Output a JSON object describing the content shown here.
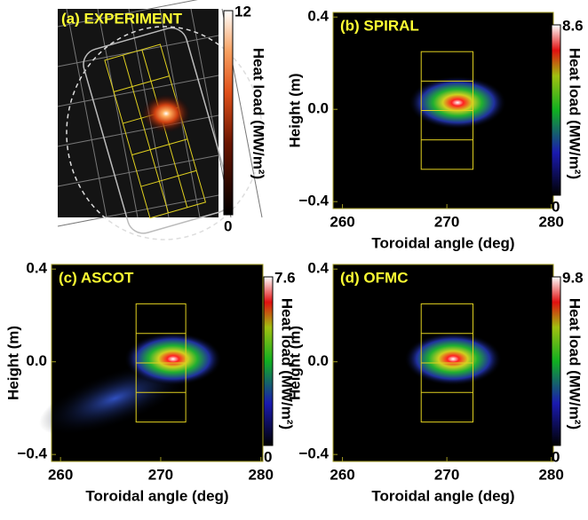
{
  "chart_data": [
    {
      "type": "image",
      "title": "(a) EXPERIMENT",
      "clabel": "Heat load (MW/m²)",
      "clim": [
        0,
        12
      ],
      "cticks": [
        0,
        12
      ]
    },
    {
      "type": "heatmap",
      "title": "(b) SPIRAL",
      "xlabel": "Toroidal angle (deg)",
      "ylabel": "Height (m)",
      "xlim": [
        259.1,
        280.2
      ],
      "xticks": [
        260,
        270,
        280
      ],
      "ylim": [
        -0.43,
        0.42
      ],
      "yticks": [
        {
          "value": -0.4,
          "label": "−0.4"
        },
        {
          "value": 0,
          "label": "0.0"
        },
        0.4
      ],
      "clabel": "Heat load (MW/m²)",
      "clim": [
        0,
        8.6
      ],
      "cticks": [
        0,
        8.6
      ]
    },
    {
      "type": "heatmap",
      "title": "(c) ASCOT",
      "xlabel": "Toroidal angle (deg)",
      "ylabel": "Height (m)",
      "xlim": [
        259.1,
        280.2
      ],
      "xticks": [
        260,
        270,
        280
      ],
      "ylim": [
        -0.43,
        0.42
      ],
      "yticks": [
        {
          "value": -0.4,
          "label": "−0.4"
        },
        {
          "value": 0,
          "label": "0.0"
        },
        0.4
      ],
      "clabel": "Heat load (MW/m²)",
      "clim": [
        0,
        7.6
      ],
      "cticks": [
        0,
        7.6
      ]
    },
    {
      "type": "heatmap",
      "title": "(d) OFMC",
      "xlabel": "Toroidal angle (deg)",
      "ylabel": "Height (m)",
      "xlim": [
        259.1,
        280.2
      ],
      "xticks": [
        260,
        270,
        280
      ],
      "ylim": [
        -0.43,
        0.42
      ],
      "yticks": [
        {
          "value": -0.4,
          "label": "−0.4"
        },
        {
          "value": 0,
          "label": "0.0"
        },
        0.4
      ],
      "clabel": "Heat load (MW/m²)",
      "clim": [
        0,
        9.8
      ],
      "cticks": [
        0,
        9.8
      ]
    }
  ]
}
